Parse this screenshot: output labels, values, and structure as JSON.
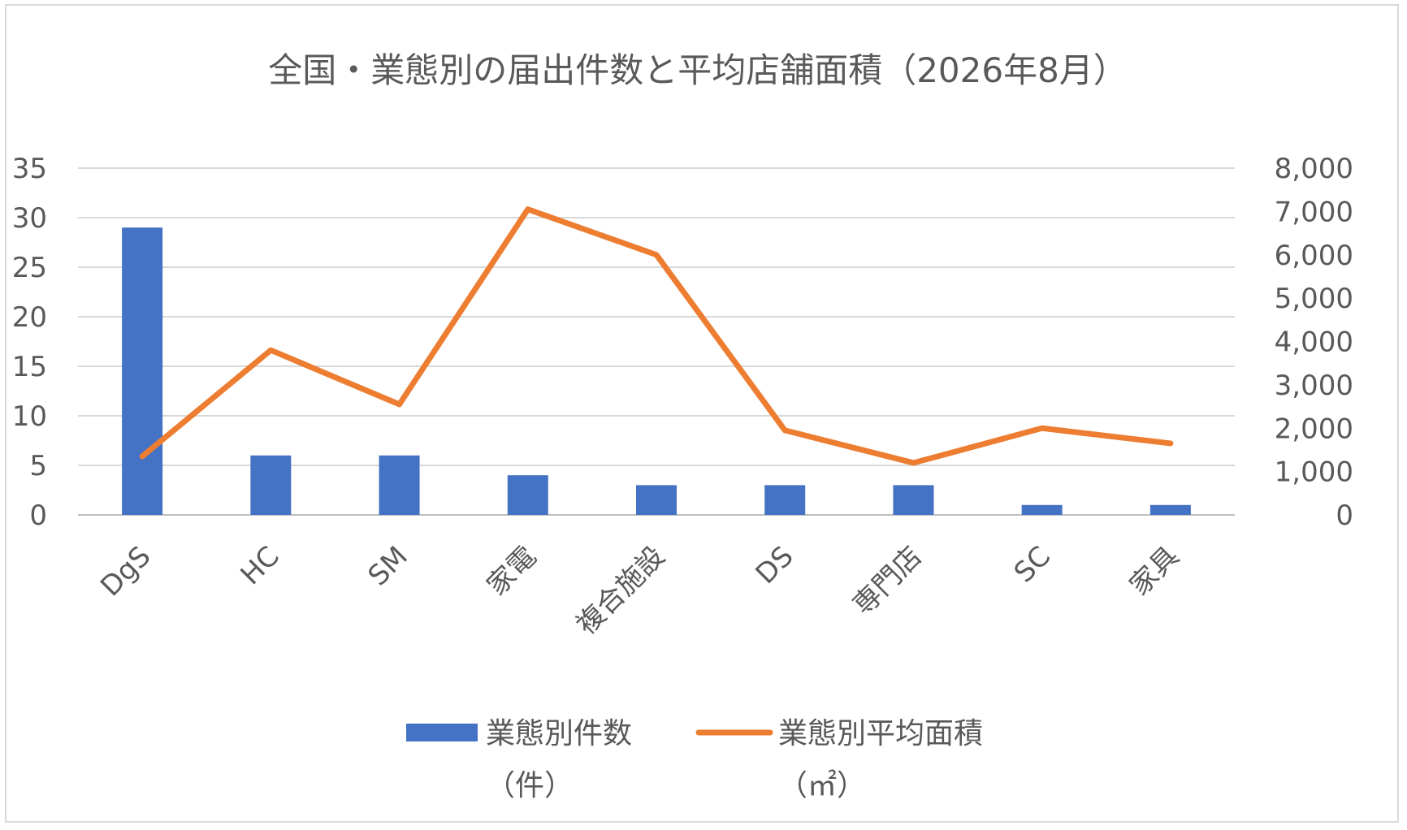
{
  "chart_data": {
    "type": "bar",
    "title": "全国・業態別の届出件数と平均店舗面積（2026年8月）",
    "categories": [
      "DgS",
      "HC",
      "SM",
      "家電",
      "複合施設",
      "DS",
      "専門店",
      "SC",
      "家具"
    ],
    "series": [
      {
        "name": "業態別件数",
        "unit": "（件）",
        "type": "bar",
        "axis": "left",
        "color": "#4472C4",
        "values": [
          29,
          6,
          6,
          4,
          3,
          3,
          3,
          1,
          1
        ]
      },
      {
        "name": "業態別平均面積",
        "unit": "（㎡）",
        "type": "line",
        "axis": "right",
        "color": "#ED7D31",
        "values": [
          1350,
          3800,
          2550,
          7050,
          6000,
          1950,
          1200,
          2000,
          1650
        ]
      }
    ],
    "y_left": {
      "min": 0,
      "max": 35,
      "step": 5,
      "ticks": [
        "0",
        "5",
        "10",
        "15",
        "20",
        "25",
        "30",
        "35"
      ]
    },
    "y_right": {
      "min": 0,
      "max": 8000,
      "step": 1000,
      "ticks": [
        "0",
        "1,000",
        "2,000",
        "3,000",
        "4,000",
        "5,000",
        "6,000",
        "7,000",
        "8,000"
      ]
    },
    "grid": true,
    "legend_position": "bottom"
  }
}
